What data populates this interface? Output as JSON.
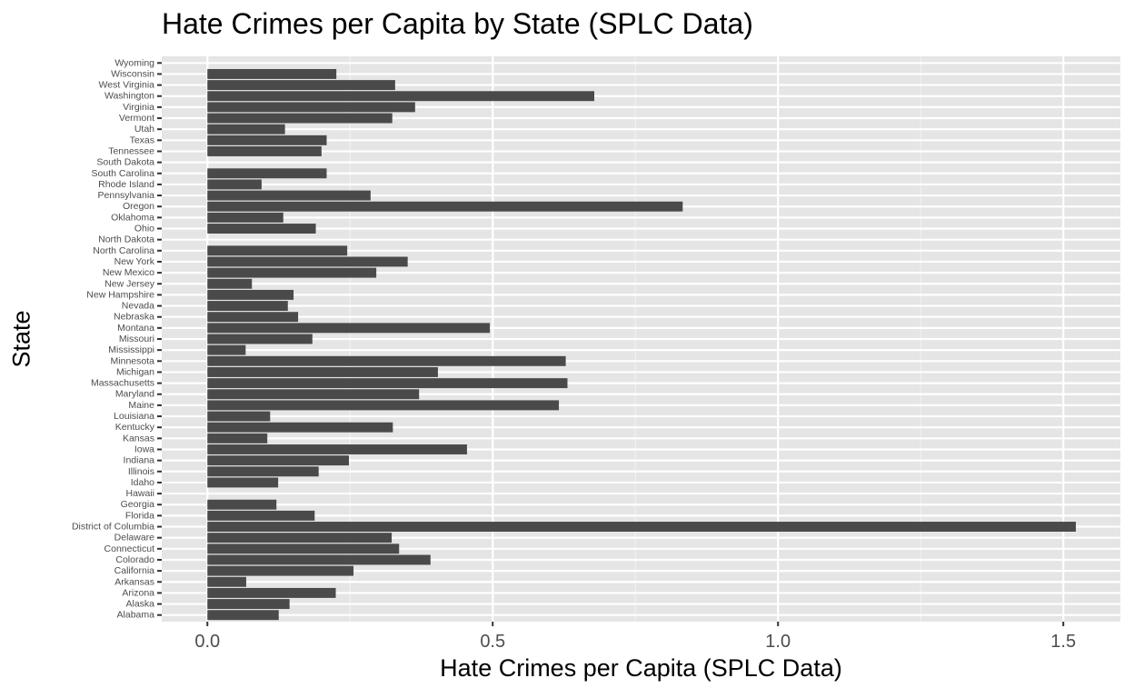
{
  "chart_data": {
    "type": "bar",
    "orientation": "horizontal",
    "title": "Hate Crimes per Capita by State (SPLC Data)",
    "xlabel": "Hate Crimes per Capita (SPLC Data)",
    "ylabel": "State",
    "xlim": [
      -0.08,
      1.6
    ],
    "xticks": [
      0.0,
      0.5,
      1.0,
      1.5
    ],
    "xtick_labels": [
      "0.0",
      "0.5",
      "1.0",
      "1.5"
    ],
    "grid": true,
    "bar_color": "#4a4a4a",
    "panel_color": "#e5e5e5",
    "categories": [
      "Alabama",
      "Alaska",
      "Arizona",
      "Arkansas",
      "California",
      "Colorado",
      "Connecticut",
      "Delaware",
      "District of Columbia",
      "Florida",
      "Georgia",
      "Hawaii",
      "Idaho",
      "Illinois",
      "Indiana",
      "Iowa",
      "Kansas",
      "Kentucky",
      "Louisiana",
      "Maine",
      "Maryland",
      "Massachusetts",
      "Michigan",
      "Minnesota",
      "Mississippi",
      "Missouri",
      "Montana",
      "Nebraska",
      "Nevada",
      "New Hampshire",
      "New Jersey",
      "New Mexico",
      "New York",
      "North Carolina",
      "North Dakota",
      "Ohio",
      "Oklahoma",
      "Oregon",
      "Pennsylvania",
      "Rhode Island",
      "South Carolina",
      "South Dakota",
      "Tennessee",
      "Texas",
      "Utah",
      "Vermont",
      "Virginia",
      "Washington",
      "West Virginia",
      "Wisconsin",
      "Wyoming"
    ],
    "values": [
      0.125,
      0.144,
      0.225,
      0.068,
      0.256,
      0.391,
      0.336,
      0.323,
      1.522,
      0.188,
      0.121,
      null,
      0.124,
      0.195,
      0.248,
      0.455,
      0.105,
      0.325,
      0.11,
      0.616,
      0.371,
      0.631,
      0.404,
      0.628,
      0.067,
      0.184,
      0.495,
      0.159,
      0.141,
      0.151,
      0.078,
      0.296,
      0.351,
      0.245,
      null,
      0.19,
      0.133,
      0.833,
      0.286,
      0.095,
      0.209,
      null,
      0.2,
      0.209,
      0.136,
      0.324,
      0.364,
      0.678,
      0.329,
      0.226,
      null
    ]
  }
}
